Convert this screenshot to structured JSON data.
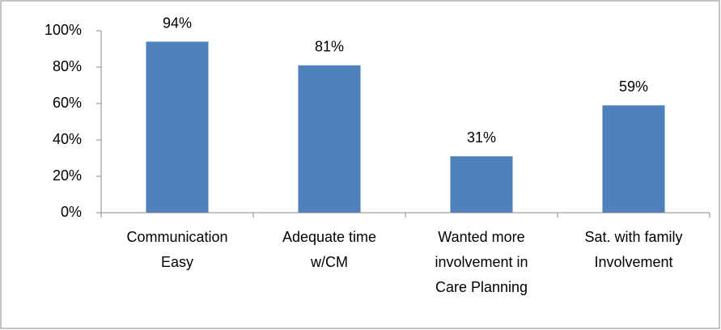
{
  "chart_data": {
    "type": "bar",
    "categories": [
      "Communication Easy",
      "Adequate time w/CM",
      "Wanted more involvement in Care Planning",
      "Sat. with family Involvement"
    ],
    "values": [
      94,
      81,
      31,
      59
    ],
    "value_labels": [
      "94%",
      "81%",
      "31%",
      "59%"
    ],
    "color": "#4f81bd",
    "ylim": [
      0,
      100
    ],
    "yticks": [
      {
        "value": 0,
        "label": "0%"
      },
      {
        "value": 20,
        "label": "20%"
      },
      {
        "value": 40,
        "label": "40%"
      },
      {
        "value": 60,
        "label": "60%"
      },
      {
        "value": 80,
        "label": "80%"
      },
      {
        "value": 100,
        "label": "100%"
      }
    ],
    "grid": false
  }
}
